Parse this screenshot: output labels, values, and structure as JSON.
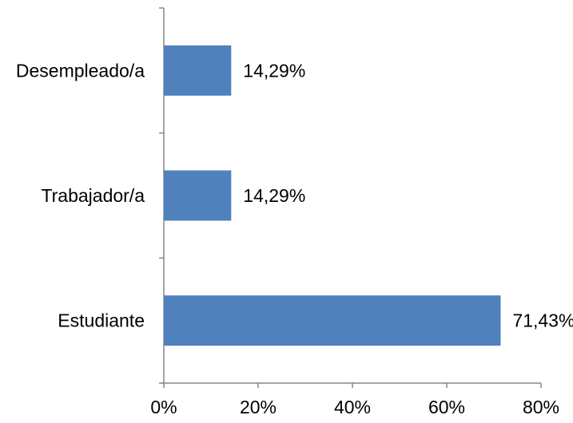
{
  "chart_data": {
    "type": "bar",
    "orientation": "horizontal",
    "categories": [
      "Estudiante",
      "Trabajador/a",
      "Desempleado/a"
    ],
    "values": [
      71.43,
      14.29,
      14.29
    ],
    "value_labels": [
      "71,43%",
      "14,29%",
      "14,29%"
    ],
    "xlim": [
      0,
      80
    ],
    "x_ticks": [
      0,
      20,
      40,
      60,
      80
    ],
    "x_tick_labels": [
      "0%",
      "20%",
      "40%",
      "60%",
      "80%"
    ],
    "title": "",
    "xlabel": "",
    "ylabel": "",
    "grid": false,
    "legend": "none",
    "bar_color": "#4f81bd",
    "axis_color": "#868686"
  }
}
